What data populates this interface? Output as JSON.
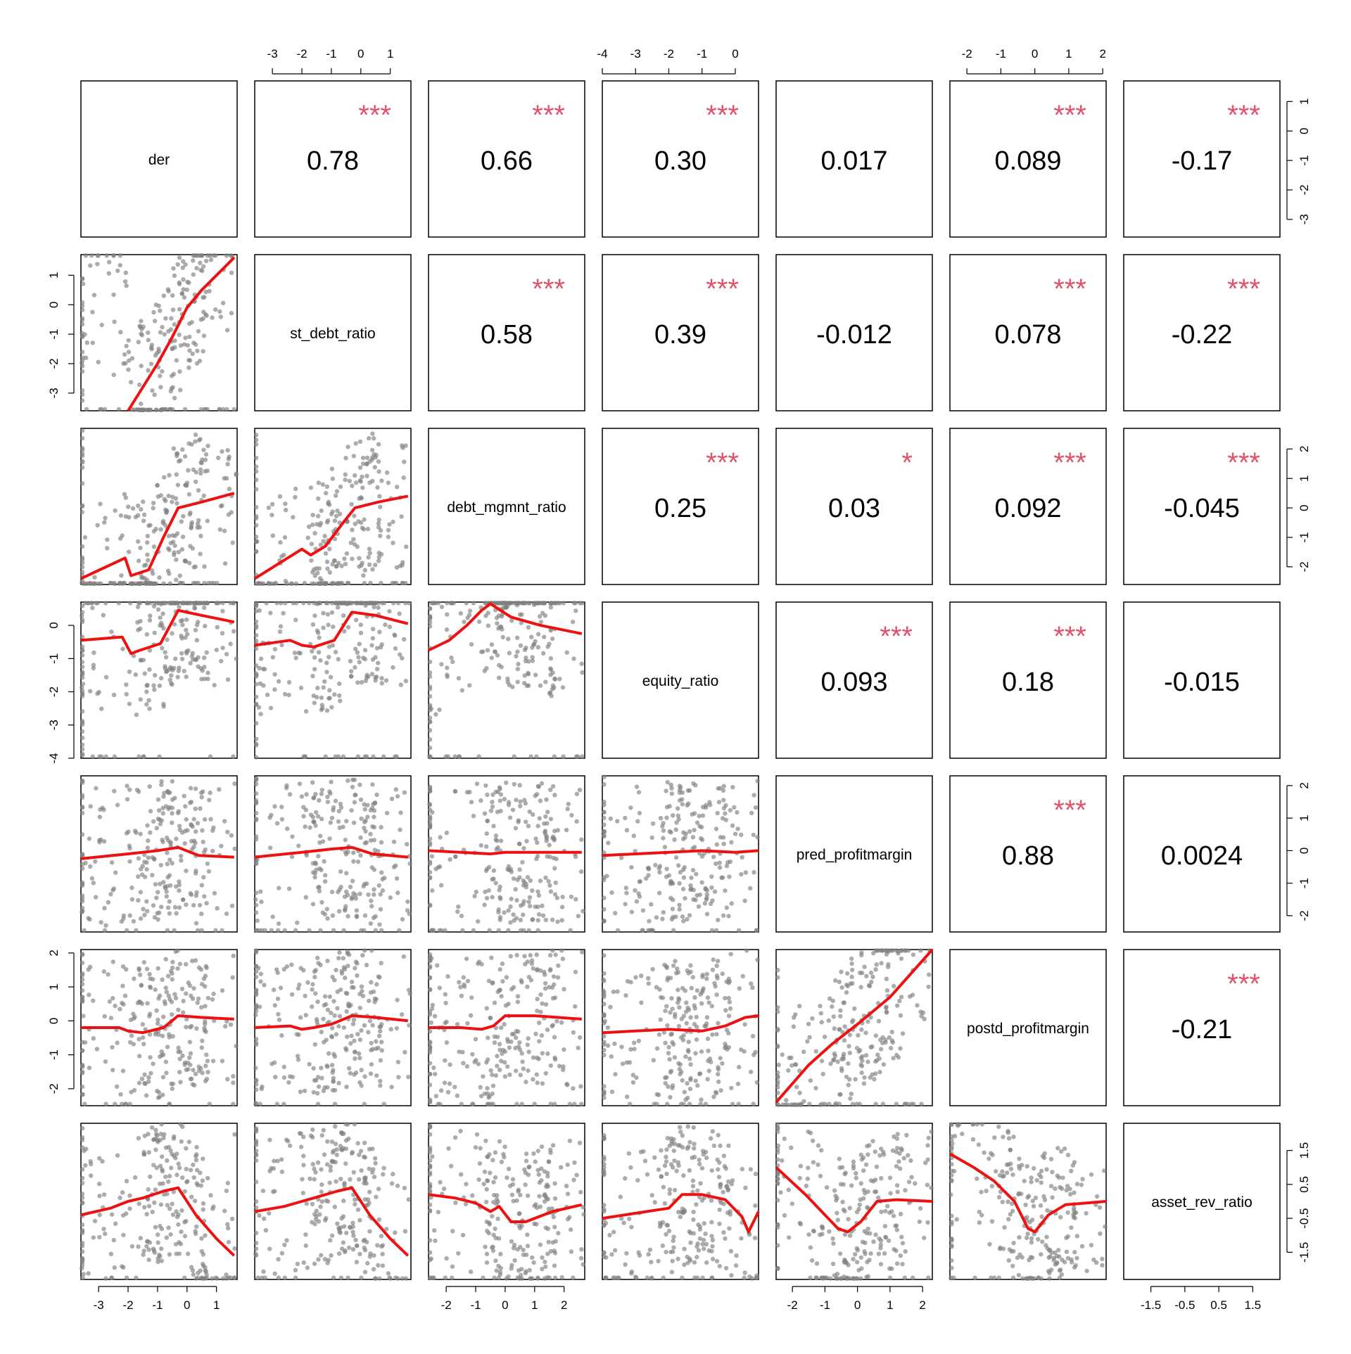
{
  "chart_data": {
    "type": "scatter",
    "kind": "correlation-pairs-matrix",
    "variables": [
      "der",
      "st_debt_ratio",
      "debt_mgmnt_ratio",
      "equity_ratio",
      "pred_profitmargin",
      "postd_profitmargin",
      "asset_rev_ratio"
    ],
    "ranges": [
      [
        -3.6,
        1.7
      ],
      [
        -3.6,
        1.7
      ],
      [
        -2.6,
        2.7
      ],
      [
        -4.0,
        0.7
      ],
      [
        -2.5,
        2.3
      ],
      [
        -2.5,
        2.1
      ],
      [
        -2.3,
        2.3
      ]
    ],
    "ticks": [
      [
        -3,
        -2,
        -1,
        0,
        1
      ],
      [
        -3,
        -2,
        -1,
        0,
        1
      ],
      [
        -2,
        -1,
        0,
        1,
        2
      ],
      [
        -4,
        -3,
        -2,
        -1,
        0
      ],
      [
        -2,
        -1,
        0,
        1,
        2
      ],
      [
        -2,
        -1,
        0,
        1,
        2
      ],
      [
        -1.5,
        -0.5,
        0.5,
        1.5
      ]
    ],
    "correlations": [
      {
        "row": 0,
        "col": 1,
        "r": "0.78",
        "stars": "***"
      },
      {
        "row": 0,
        "col": 2,
        "r": "0.66",
        "stars": "***"
      },
      {
        "row": 0,
        "col": 3,
        "r": "0.30",
        "stars": "***"
      },
      {
        "row": 0,
        "col": 4,
        "r": "0.017",
        "stars": ""
      },
      {
        "row": 0,
        "col": 5,
        "r": "0.089",
        "stars": "***"
      },
      {
        "row": 0,
        "col": 6,
        "r": "-0.17",
        "stars": "***"
      },
      {
        "row": 1,
        "col": 2,
        "r": "0.58",
        "stars": "***"
      },
      {
        "row": 1,
        "col": 3,
        "r": "0.39",
        "stars": "***"
      },
      {
        "row": 1,
        "col": 4,
        "r": "-0.012",
        "stars": ""
      },
      {
        "row": 1,
        "col": 5,
        "r": "0.078",
        "stars": "***"
      },
      {
        "row": 1,
        "col": 6,
        "r": "-0.22",
        "stars": "***"
      },
      {
        "row": 2,
        "col": 3,
        "r": "0.25",
        "stars": "***"
      },
      {
        "row": 2,
        "col": 4,
        "r": "0.03",
        "stars": "*"
      },
      {
        "row": 2,
        "col": 5,
        "r": "0.092",
        "stars": "***"
      },
      {
        "row": 2,
        "col": 6,
        "r": "-0.045",
        "stars": "***"
      },
      {
        "row": 3,
        "col": 4,
        "r": "0.093",
        "stars": "***"
      },
      {
        "row": 3,
        "col": 5,
        "r": "0.18",
        "stars": "***"
      },
      {
        "row": 3,
        "col": 6,
        "r": "-0.015",
        "stars": ""
      },
      {
        "row": 4,
        "col": 5,
        "r": "0.88",
        "stars": "***"
      },
      {
        "row": 4,
        "col": 6,
        "r": "0.0024",
        "stars": ""
      },
      {
        "row": 5,
        "col": 6,
        "r": "-0.21",
        "stars": "***"
      }
    ],
    "smooth_lines": [
      {
        "row": 1,
        "col": 0,
        "x": [
          -2.0,
          -1.5,
          -1.0,
          -0.5,
          0.0,
          0.5,
          1.0,
          1.6
        ],
        "y": [
          -3.6,
          -2.8,
          -2.0,
          -1.1,
          -0.1,
          0.5,
          1.0,
          1.6
        ]
      },
      {
        "row": 2,
        "col": 0,
        "x": [
          -3.6,
          -2.1,
          -1.9,
          -1.3,
          -0.8,
          -0.3,
          0.5,
          1.6
        ],
        "y": [
          -2.4,
          -1.7,
          -2.3,
          -2.1,
          -1.0,
          0.0,
          0.2,
          0.5
        ]
      },
      {
        "row": 2,
        "col": 1,
        "x": [
          -3.6,
          -2.0,
          -1.7,
          -1.2,
          -0.6,
          -0.2,
          0.6,
          1.6
        ],
        "y": [
          -2.4,
          -1.4,
          -1.6,
          -1.3,
          -0.5,
          0.0,
          0.2,
          0.4
        ]
      },
      {
        "row": 3,
        "col": 0,
        "x": [
          -3.6,
          -2.2,
          -1.9,
          -1.6,
          -0.9,
          -0.3,
          0.5,
          1.6
        ],
        "y": [
          -0.45,
          -0.35,
          -0.85,
          -0.75,
          -0.55,
          0.45,
          0.3,
          0.1
        ]
      },
      {
        "row": 3,
        "col": 1,
        "x": [
          -3.6,
          -2.4,
          -2.0,
          -1.6,
          -0.9,
          -0.3,
          0.5,
          1.6
        ],
        "y": [
          -0.6,
          -0.45,
          -0.6,
          -0.65,
          -0.45,
          0.4,
          0.3,
          0.05
        ]
      },
      {
        "row": 3,
        "col": 2,
        "x": [
          -2.6,
          -1.9,
          -1.3,
          -0.8,
          -0.5,
          0.2,
          1.2,
          2.6
        ],
        "y": [
          -0.75,
          -0.45,
          0.0,
          0.45,
          0.65,
          0.25,
          0.0,
          -0.25
        ]
      },
      {
        "row": 4,
        "col": 0,
        "x": [
          -3.6,
          -2.0,
          -1.0,
          -0.3,
          0.4,
          1.6
        ],
        "y": [
          -0.25,
          -0.1,
          0.0,
          0.1,
          -0.15,
          -0.2
        ]
      },
      {
        "row": 4,
        "col": 1,
        "x": [
          -3.6,
          -2.0,
          -1.0,
          -0.3,
          0.4,
          1.6
        ],
        "y": [
          -0.2,
          -0.05,
          0.05,
          0.1,
          -0.1,
          -0.2
        ]
      },
      {
        "row": 4,
        "col": 2,
        "x": [
          -2.6,
          -1.5,
          -0.5,
          0.0,
          1.0,
          2.6
        ],
        "y": [
          0.0,
          -0.05,
          -0.1,
          -0.05,
          -0.05,
          -0.05
        ]
      },
      {
        "row": 4,
        "col": 3,
        "x": [
          -4.0,
          -3.0,
          -2.0,
          -1.0,
          0.0,
          0.7
        ],
        "y": [
          -0.15,
          -0.1,
          -0.05,
          0.0,
          -0.05,
          0.0
        ]
      },
      {
        "row": 5,
        "col": 0,
        "x": [
          -3.6,
          -2.3,
          -2.0,
          -1.5,
          -0.8,
          -0.3,
          0.5,
          1.6
        ],
        "y": [
          -0.2,
          -0.2,
          -0.3,
          -0.35,
          -0.2,
          0.15,
          0.1,
          0.05
        ]
      },
      {
        "row": 5,
        "col": 1,
        "x": [
          -3.6,
          -2.4,
          -2.0,
          -1.6,
          -1.0,
          -0.3,
          0.5,
          1.6
        ],
        "y": [
          -0.2,
          -0.15,
          -0.25,
          -0.2,
          -0.1,
          0.15,
          0.1,
          0.0
        ]
      },
      {
        "row": 5,
        "col": 2,
        "x": [
          -2.6,
          -1.5,
          -0.8,
          -0.4,
          0.0,
          1.0,
          2.6
        ],
        "y": [
          -0.2,
          -0.2,
          -0.25,
          -0.15,
          0.15,
          0.15,
          0.05
        ]
      },
      {
        "row": 5,
        "col": 3,
        "x": [
          -4.0,
          -3.0,
          -2.0,
          -1.0,
          -0.3,
          0.3,
          0.7
        ],
        "y": [
          -0.35,
          -0.3,
          -0.25,
          -0.3,
          -0.15,
          0.1,
          0.15
        ]
      },
      {
        "row": 5,
        "col": 4,
        "x": [
          -2.5,
          -1.5,
          -0.8,
          0.0,
          1.0,
          2.3
        ],
        "y": [
          -2.4,
          -1.3,
          -0.7,
          -0.1,
          0.7,
          2.1
        ]
      },
      {
        "row": 6,
        "col": 0,
        "x": [
          -3.6,
          -2.6,
          -2.0,
          -1.5,
          -0.8,
          -0.3,
          0.3,
          1.0,
          1.6
        ],
        "y": [
          -0.4,
          -0.2,
          0.0,
          0.1,
          0.3,
          0.4,
          -0.4,
          -1.1,
          -1.6
        ]
      },
      {
        "row": 6,
        "col": 1,
        "x": [
          -3.6,
          -2.6,
          -2.0,
          -1.4,
          -0.8,
          -0.3,
          0.3,
          1.0,
          1.6
        ],
        "y": [
          -0.3,
          -0.15,
          0.0,
          0.15,
          0.3,
          0.4,
          -0.4,
          -1.1,
          -1.6
        ]
      },
      {
        "row": 6,
        "col": 2,
        "x": [
          -2.6,
          -1.7,
          -1.0,
          -0.5,
          -0.2,
          0.2,
          0.7,
          1.6,
          2.6
        ],
        "y": [
          0.2,
          0.1,
          -0.05,
          -0.3,
          -0.15,
          -0.6,
          -0.6,
          -0.3,
          -0.1
        ]
      },
      {
        "row": 6,
        "col": 3,
        "x": [
          -4.0,
          -3.0,
          -2.0,
          -1.6,
          -1.0,
          -0.3,
          0.2,
          0.4,
          0.7
        ],
        "y": [
          -0.5,
          -0.35,
          -0.2,
          0.2,
          0.2,
          0.05,
          -0.45,
          -0.9,
          -0.3
        ]
      },
      {
        "row": 6,
        "col": 4,
        "x": [
          -2.5,
          -1.6,
          -1.0,
          -0.6,
          -0.3,
          0.1,
          0.6,
          1.2,
          2.3
        ],
        "y": [
          1.0,
          0.2,
          -0.4,
          -0.8,
          -0.9,
          -0.6,
          0.0,
          0.05,
          0.0
        ]
      },
      {
        "row": 6,
        "col": 5,
        "x": [
          -2.5,
          -1.8,
          -1.2,
          -0.6,
          -0.2,
          0.0,
          0.4,
          0.9,
          2.1
        ],
        "y": [
          1.4,
          1.0,
          0.6,
          0.0,
          -0.8,
          -0.9,
          -0.4,
          -0.1,
          0.0
        ]
      }
    ]
  }
}
